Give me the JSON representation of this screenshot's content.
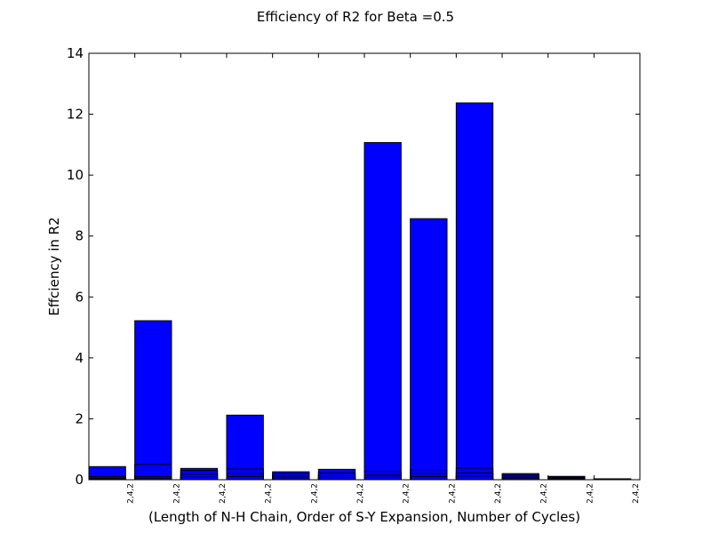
{
  "chart_data": {
    "type": "bar",
    "title": "Efficiency of R2 for Beta =0.5",
    "xlabel": "(Length of N-H Chain, Order of S-Y Expansion, Number of Cycles)",
    "ylabel": "Effciency in R2",
    "ylim": [
      0,
      14
    ],
    "yticks": [
      "0",
      "2",
      "4",
      "6",
      "8",
      "10",
      "12",
      "14"
    ],
    "categories": [
      "2,4,2",
      "2,4,2",
      "2,4,2",
      "2,4,2",
      "2,4,2",
      "2,4,2",
      "2,4,2",
      "2,4,2",
      "2,4,2",
      "2,4,2",
      "2,4,2",
      "2,4,2"
    ],
    "series": [
      {
        "values": [
          0.43,
          5.22,
          0.37,
          2.12,
          0.26,
          0.34,
          11.07,
          8.57,
          12.37,
          0.2,
          0.11,
          0.03
        ]
      },
      {
        "values": [
          0.1,
          0.5,
          0.3,
          0.35,
          0.2,
          0.22,
          0.27,
          0.33,
          0.38,
          0.15,
          0.08,
          0.02
        ]
      },
      {
        "values": [
          0.05,
          0.1,
          0.18,
          0.2,
          0.12,
          0.14,
          0.15,
          0.2,
          0.22,
          0.09,
          0.05,
          0.01
        ]
      },
      {
        "values": [
          0.03,
          0.05,
          0.08,
          0.1,
          0.06,
          0.07,
          0.08,
          0.1,
          0.12,
          0.05,
          0.03,
          0.005
        ]
      }
    ],
    "bar_color": "#0000ff",
    "edge_color": "#000000",
    "grid": false,
    "legend": "none"
  }
}
